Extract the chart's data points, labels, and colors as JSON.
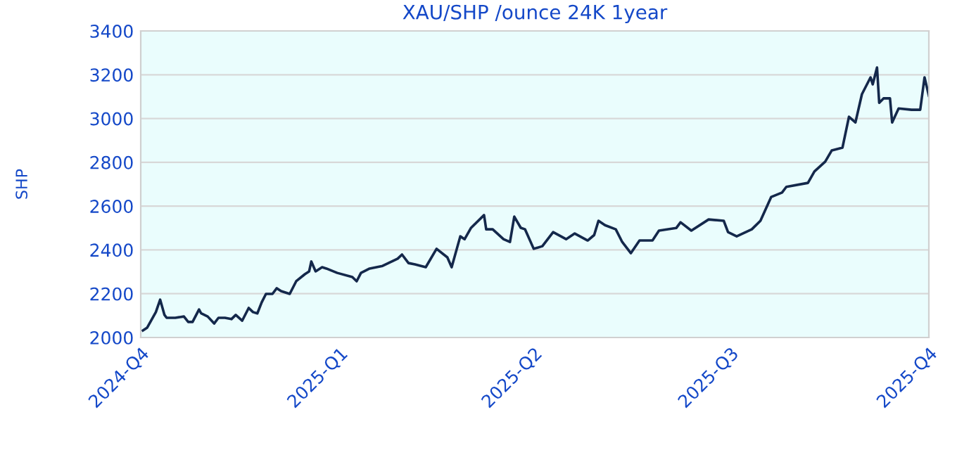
{
  "chart_data": {
    "type": "line",
    "title": "XAU/SHP /ounce 24K 1year",
    "ylabel": "SHP",
    "x": [
      "2024-10-02",
      "2024-10-04",
      "2024-10-08",
      "2024-10-10",
      "2024-10-12",
      "2024-10-13",
      "2024-10-17",
      "2024-10-21",
      "2024-10-23",
      "2024-10-25",
      "2024-10-28",
      "2024-10-29",
      "2024-11-01",
      "2024-11-04",
      "2024-11-06",
      "2024-11-09",
      "2024-11-12",
      "2024-11-14",
      "2024-11-17",
      "2024-11-20",
      "2024-11-22",
      "2024-11-24",
      "2024-11-26",
      "2024-11-28",
      "2024-12-01",
      "2024-12-03",
      "2024-12-05",
      "2024-12-09",
      "2024-12-12",
      "2024-12-16",
      "2024-12-18",
      "2024-12-19",
      "2024-12-21",
      "2024-12-24",
      "2024-12-26",
      "2024-12-31",
      "2025-01-07",
      "2025-01-09",
      "2025-01-11",
      "2025-01-15",
      "2025-01-21",
      "2025-01-28",
      "2025-01-30",
      "2025-02-02",
      "2025-02-05",
      "2025-02-10",
      "2025-02-15",
      "2025-02-20",
      "2025-02-22",
      "2025-02-26",
      "2025-02-28",
      "2025-03-03",
      "2025-03-09",
      "2025-03-10",
      "2025-03-13",
      "2025-03-18",
      "2025-03-21",
      "2025-03-23",
      "2025-03-26",
      "2025-03-28",
      "2025-04-01",
      "2025-04-05",
      "2025-04-10",
      "2025-04-16",
      "2025-04-20",
      "2025-04-26",
      "2025-04-29",
      "2025-05-01",
      "2025-05-04",
      "2025-05-09",
      "2025-05-12",
      "2025-05-16",
      "2025-05-20",
      "2025-05-26",
      "2025-05-29",
      "2025-06-06",
      "2025-06-08",
      "2025-06-13",
      "2025-06-21",
      "2025-06-28",
      "2025-06-30",
      "2025-07-04",
      "2025-07-11",
      "2025-07-15",
      "2025-07-20",
      "2025-07-25",
      "2025-07-27",
      "2025-08-06",
      "2025-08-09",
      "2025-08-14",
      "2025-08-17",
      "2025-08-22",
      "2025-08-25",
      "2025-08-28",
      "2025-08-31",
      "2025-09-04",
      "2025-09-05",
      "2025-09-07",
      "2025-09-08",
      "2025-09-10",
      "2025-09-13",
      "2025-09-14",
      "2025-09-17",
      "2025-09-23",
      "2025-09-27",
      "2025-09-29",
      "2025-10-01"
    ],
    "series": [
      {
        "color": "#14284b",
        "values": [
          2032,
          2045,
          2116,
          2173,
          2103,
          2090,
          2090,
          2096,
          2071,
          2071,
          2128,
          2110,
          2096,
          2064,
          2090,
          2090,
          2084,
          2103,
          2077,
          2135,
          2116,
          2110,
          2160,
          2199,
          2199,
          2225,
          2212,
          2199,
          2257,
          2289,
          2302,
          2347,
          2302,
          2321,
          2315,
          2295,
          2276,
          2257,
          2295,
          2315,
          2327,
          2360,
          2379,
          2340,
          2334,
          2321,
          2405,
          2366,
          2321,
          2462,
          2449,
          2501,
          2559,
          2494,
          2494,
          2449,
          2436,
          2552,
          2501,
          2494,
          2405,
          2417,
          2481,
          2449,
          2475,
          2443,
          2468,
          2533,
          2513,
          2494,
          2436,
          2385,
          2443,
          2443,
          2488,
          2500,
          2526,
          2488,
          2539,
          2533,
          2481,
          2462,
          2494,
          2533,
          2642,
          2662,
          2688,
          2706,
          2758,
          2803,
          2854,
          2867,
          3008,
          2982,
          3111,
          3188,
          3156,
          3233,
          3072,
          3092,
          3092,
          2982,
          3046,
          3040,
          3040,
          3188,
          3104
        ]
      }
    ],
    "xlim": [
      "2024-10-01",
      "2025-10-01"
    ],
    "xticks": [
      {
        "value": "2024-10-01",
        "label": "2024-Q4"
      },
      {
        "value": "2025-01-01",
        "label": "2025-Q1"
      },
      {
        "value": "2025-04-01",
        "label": "2025-Q2"
      },
      {
        "value": "2025-07-01",
        "label": "2025-Q3"
      },
      {
        "value": "2025-10-01",
        "label": "2025-Q4"
      }
    ],
    "ylim": [
      2000,
      3400
    ],
    "yticks": [
      2000,
      2200,
      2400,
      2600,
      2800,
      3000,
      3200,
      3400
    ],
    "grid": "y",
    "legend": false,
    "marker": "none",
    "line_style": "solid"
  }
}
